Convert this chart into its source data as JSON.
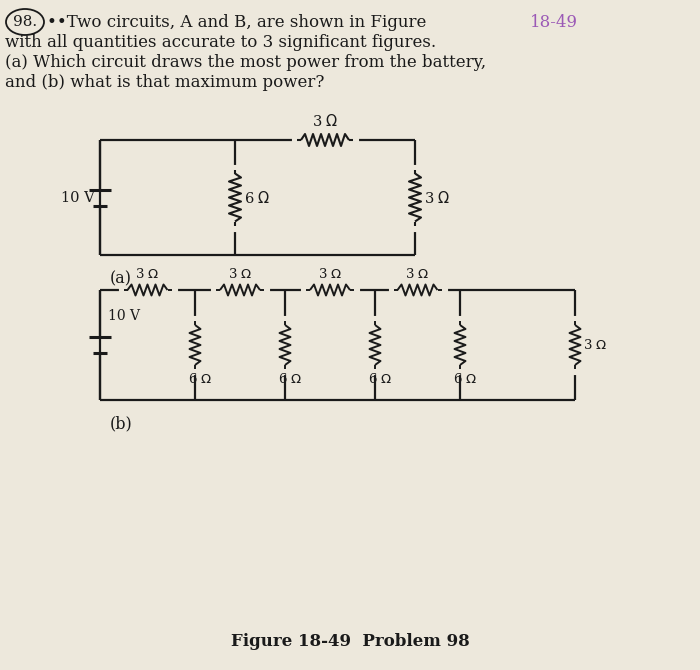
{
  "bg_color": "#ede8dc",
  "figure_ref_color": "#9B59B6",
  "text_color": "#1a1a1a",
  "line_color": "#1a1a1a",
  "title_line1_plain": "••Two circuits, A and B, are shown in Figure ",
  "title_line1_colored": "18-49",
  "title_line2": "with all quantities accurate to 3 significant figures.",
  "title_line3": "(a) Which circuit draws the most power from the battery,",
  "title_line4": "and (b) what is that maximum power?",
  "fig_caption": "Figure 18-49  Problem 98",
  "circuit_a_label": "(a)",
  "circuit_b_label": "(b)",
  "problem_number": "98.",
  "resistor_zigzag_n": 6
}
